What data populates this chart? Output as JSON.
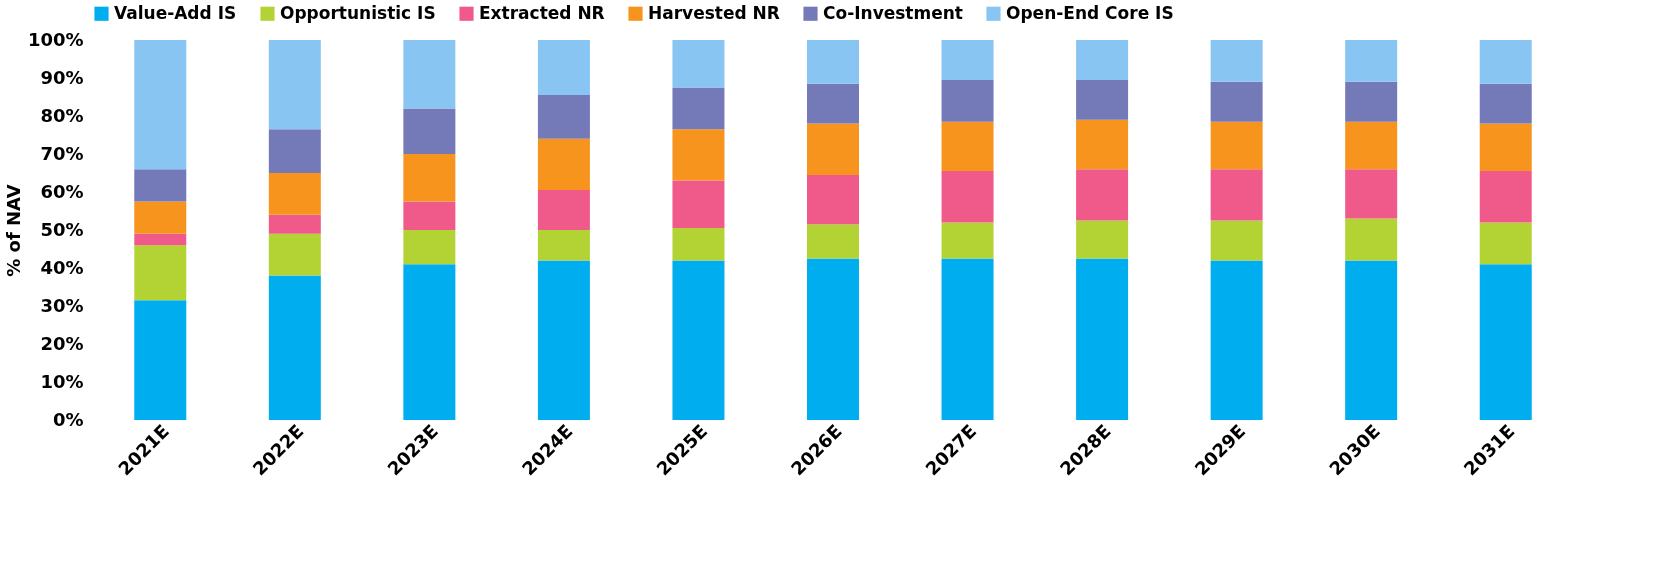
{
  "chart_data": {
    "type": "bar",
    "stacked": true,
    "ylabel": "% of NAV",
    "categories": [
      "2021E",
      "2022E",
      "2023E",
      "2024E",
      "2025E",
      "2026E",
      "2027E",
      "2028E",
      "2029E",
      "2030E",
      "2031E"
    ],
    "series": [
      {
        "name": "Value-Add IS",
        "color": "#00adef",
        "values": [
          31.5,
          38,
          41,
          42,
          42,
          42.5,
          42.5,
          42.5,
          42,
          42,
          41
        ]
      },
      {
        "name": "Opportunistic IS",
        "color": "#b3d335",
        "values": [
          14.5,
          11,
          9,
          8,
          8.5,
          9,
          9.5,
          10,
          10.5,
          11,
          11
        ]
      },
      {
        "name": "Extracted NR",
        "color": "#f05a8a",
        "values": [
          3,
          5,
          7.5,
          10.5,
          12.5,
          13,
          13.5,
          13.5,
          13.5,
          13,
          13.5
        ]
      },
      {
        "name": "Harvested NR",
        "color": "#f7941e",
        "values": [
          8.5,
          11,
          12.5,
          13.5,
          13.5,
          13.5,
          13,
          13,
          12.5,
          12.5,
          12.5
        ]
      },
      {
        "name": "Co-Investment",
        "color": "#7479b8",
        "values": [
          8.5,
          11.5,
          12,
          11.5,
          11,
          10.5,
          11,
          10.5,
          10.5,
          10.5,
          10.5
        ]
      },
      {
        "name": "Open-End Core IS",
        "color": "#88c5f3",
        "values": [
          34,
          23.5,
          18,
          14.5,
          12.5,
          11.5,
          10.5,
          10.5,
          11,
          11,
          11.5
        ]
      }
    ],
    "ylim": [
      0,
      100
    ],
    "yticks": [
      {
        "value": 0,
        "label": "0%"
      },
      {
        "value": 10,
        "label": "10%"
      },
      {
        "value": 20,
        "label": "20%"
      },
      {
        "value": 30,
        "label": "30%"
      },
      {
        "value": 40,
        "label": "40%"
      },
      {
        "value": 50,
        "label": "50%"
      },
      {
        "value": 60,
        "label": "60%"
      },
      {
        "value": 70,
        "label": "70%"
      },
      {
        "value": 80,
        "label": "80%"
      },
      {
        "value": 90,
        "label": "90%"
      },
      {
        "value": 100,
        "label": "100%"
      }
    ],
    "grid": false,
    "legend": "top"
  }
}
